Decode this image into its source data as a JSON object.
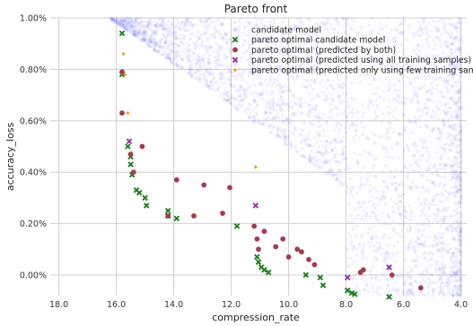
{
  "chart_data": {
    "type": "scatter",
    "title": "Pareto front",
    "xlabel": "compression_rate",
    "ylabel": "accuracy_loss",
    "x_reversed": true,
    "xlim": [
      18.3,
      3.8
    ],
    "ylim": [
      -0.08,
      1.0
    ],
    "x_ticks": [
      18.0,
      16.0,
      14.0,
      12.0,
      10.0,
      8.0,
      6.0,
      4.0
    ],
    "x_tick_labels": [
      "18.0",
      "16.0",
      "14.0",
      "12.0",
      "10.0",
      "8.0",
      "6.0",
      "4.0"
    ],
    "y_ticks": [
      0.0,
      0.2,
      0.4,
      0.6,
      0.8,
      1.0
    ],
    "y_tick_labels": [
      "0.00%",
      "0.20%",
      "0.40%",
      "0.60%",
      "0.80%",
      "1.00%"
    ],
    "grid": true,
    "legend_position": "upper-right",
    "legend": [
      {
        "label": "candidate model",
        "marker": "dot-faint",
        "color": "#5a5af0"
      },
      {
        "label": "pareto optimal candidate model",
        "marker": "x",
        "color": "#1a7f1a"
      },
      {
        "label": "pareto optimal (predicted by both)",
        "marker": "circle",
        "color": "#a83a4e"
      },
      {
        "label": "pareto optimal (predicted using all training samples)",
        "marker": "x",
        "color": "#9a2fa0"
      },
      {
        "label": "pareto optimal (predicted only using few training samples)",
        "marker": "diamond",
        "color": "#f2a31b"
      }
    ],
    "series": [
      {
        "name": "pareto optimal candidate model",
        "marker": "x",
        "color": "#1a7f1a",
        "points": [
          [
            15.8,
            0.94
          ],
          [
            15.8,
            0.78
          ],
          [
            15.6,
            0.5
          ],
          [
            15.5,
            0.46
          ],
          [
            15.5,
            0.43
          ],
          [
            15.45,
            0.39
          ],
          [
            15.3,
            0.33
          ],
          [
            15.2,
            0.32
          ],
          [
            15.0,
            0.3
          ],
          [
            14.95,
            0.27
          ],
          [
            14.2,
            0.25
          ],
          [
            14.2,
            0.23
          ],
          [
            13.9,
            0.22
          ],
          [
            11.8,
            0.19
          ],
          [
            11.1,
            0.07
          ],
          [
            11.05,
            0.05
          ],
          [
            10.95,
            0.03
          ],
          [
            10.85,
            0.02
          ],
          [
            10.7,
            0.01
          ],
          [
            9.4,
            0.0
          ],
          [
            8.9,
            -0.01
          ],
          [
            8.8,
            -0.04
          ],
          [
            7.95,
            -0.06
          ],
          [
            7.8,
            -0.07
          ],
          [
            7.7,
            -0.075
          ],
          [
            6.5,
            -0.085
          ]
        ]
      },
      {
        "name": "pareto optimal (predicted by both)",
        "marker": "circle",
        "color": "#a83a4e",
        "points": [
          [
            15.8,
            0.79
          ],
          [
            15.8,
            0.63
          ],
          [
            15.5,
            0.47
          ],
          [
            15.4,
            0.4
          ],
          [
            15.1,
            0.5
          ],
          [
            13.9,
            0.37
          ],
          [
            14.2,
            0.23
          ],
          [
            13.3,
            0.23
          ],
          [
            12.95,
            0.35
          ],
          [
            12.3,
            0.24
          ],
          [
            12.05,
            0.34
          ],
          [
            11.2,
            0.19
          ],
          [
            11.1,
            0.14
          ],
          [
            11.05,
            0.1
          ],
          [
            10.85,
            0.17
          ],
          [
            10.45,
            0.11
          ],
          [
            10.2,
            0.14
          ],
          [
            10.0,
            0.07
          ],
          [
            9.7,
            0.1
          ],
          [
            9.55,
            0.09
          ],
          [
            9.3,
            0.06
          ],
          [
            9.1,
            0.04
          ],
          [
            7.4,
            0.02
          ],
          [
            7.5,
            0.01
          ],
          [
            6.4,
            0.0
          ],
          [
            5.4,
            -0.05
          ]
        ]
      },
      {
        "name": "pareto optimal (predicted using all training samples)",
        "marker": "x",
        "color": "#9a2fa0",
        "points": [
          [
            15.55,
            0.52
          ],
          [
            11.15,
            0.27
          ],
          [
            7.95,
            -0.01
          ],
          [
            6.5,
            0.03
          ]
        ]
      },
      {
        "name": "pareto optimal (predicted only using few training samples)",
        "marker": "diamond",
        "color": "#f2a31b",
        "points": [
          [
            15.75,
            0.86
          ],
          [
            15.7,
            0.78
          ],
          [
            15.6,
            0.63
          ],
          [
            11.15,
            0.42
          ]
        ]
      }
    ]
  }
}
